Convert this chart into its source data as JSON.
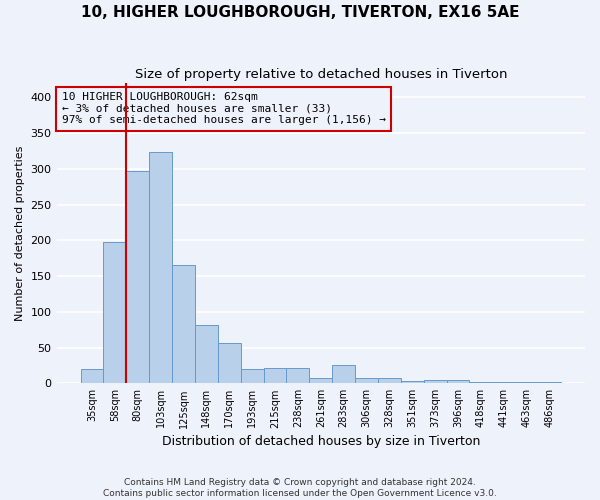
{
  "title1": "10, HIGHER LOUGHBOROUGH, TIVERTON, EX16 5AE",
  "title2": "Size of property relative to detached houses in Tiverton",
  "xlabel": "Distribution of detached houses by size in Tiverton",
  "ylabel": "Number of detached properties",
  "categories": [
    "35sqm",
    "58sqm",
    "80sqm",
    "103sqm",
    "125sqm",
    "148sqm",
    "170sqm",
    "193sqm",
    "215sqm",
    "238sqm",
    "261sqm",
    "283sqm",
    "306sqm",
    "328sqm",
    "351sqm",
    "373sqm",
    "396sqm",
    "418sqm",
    "441sqm",
    "463sqm",
    "486sqm"
  ],
  "values": [
    20,
    197,
    297,
    323,
    165,
    82,
    57,
    20,
    22,
    22,
    7,
    25,
    8,
    8,
    3,
    5,
    5,
    2,
    2,
    2,
    2
  ],
  "bar_color": "#b8d0ea",
  "bar_edge_color": "#6699cc",
  "vline_x": 1.5,
  "vline_color": "#cc0000",
  "annotation_text": "10 HIGHER LOUGHBOROUGH: 62sqm\n← 3% of detached houses are smaller (33)\n97% of semi-detached houses are larger (1,156) →",
  "annotation_box_color": "#cc0000",
  "ylim": [
    0,
    420
  ],
  "yticks": [
    0,
    50,
    100,
    150,
    200,
    250,
    300,
    350,
    400
  ],
  "footnote1": "Contains HM Land Registry data © Crown copyright and database right 2024.",
  "footnote2": "Contains public sector information licensed under the Open Government Licence v3.0.",
  "bg_color": "#eef2fb",
  "grid_color": "#ffffff",
  "title1_fontsize": 11,
  "title2_fontsize": 9.5
}
